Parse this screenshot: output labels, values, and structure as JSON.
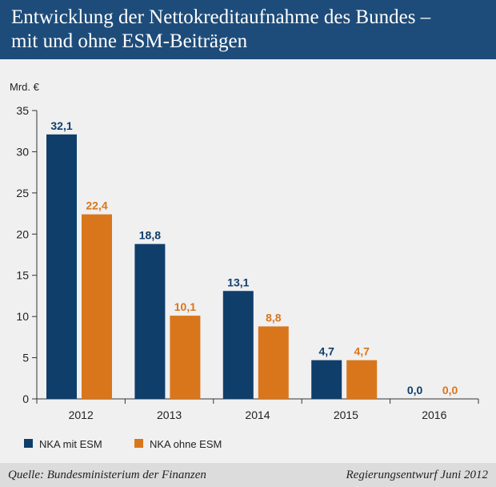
{
  "header": {
    "title_line1": "Entwicklung der Nettokreditaufnahme des Bundes –",
    "title_line2": "mit und ohne ESM-Beiträgen"
  },
  "footer": {
    "source": "Quelle: Bundesministerium der Finanzen",
    "note": "Regierungsentwurf Juni 2012"
  },
  "colors": {
    "header_bg": "#1d4c7a",
    "series_mit": "#0f3e6b",
    "series_ohne": "#d9761b"
  },
  "chart_data": {
    "type": "bar",
    "ylabel": "Mrd. €",
    "ylim": [
      0,
      35
    ],
    "yticks": [
      "0",
      "5",
      "10",
      "15",
      "20",
      "25",
      "30",
      "35"
    ],
    "categories": [
      "2012",
      "2013",
      "2014",
      "2015",
      "2016"
    ],
    "series": [
      {
        "name": "NKA mit ESM",
        "values": [
          32.1,
          18.8,
          13.1,
          4.7,
          0.0
        ],
        "labels": [
          "32,1",
          "18,8",
          "13,1",
          "4,7",
          "0,0"
        ]
      },
      {
        "name": "NKA ohne ESM",
        "values": [
          22.4,
          10.1,
          8.8,
          4.7,
          0.0
        ],
        "labels": [
          "22,4",
          "10,1",
          "8,8",
          "4,7",
          "0,0"
        ]
      }
    ],
    "grid": false,
    "legend": "bottom-left"
  }
}
